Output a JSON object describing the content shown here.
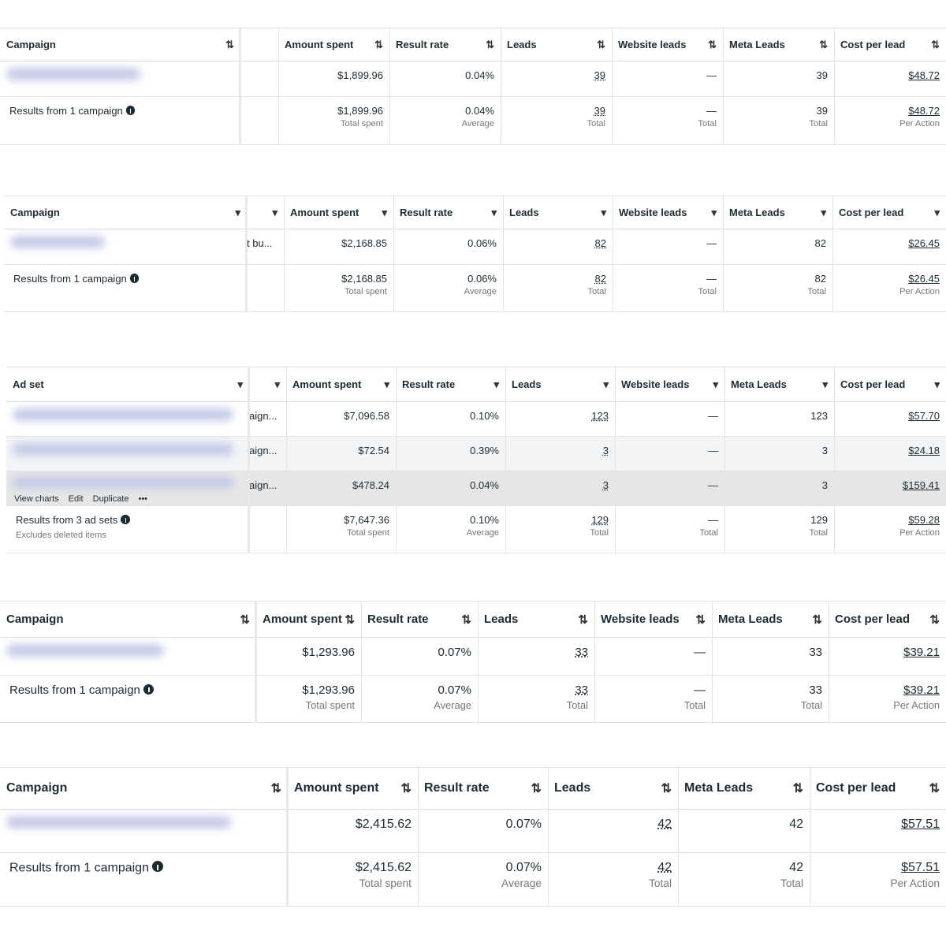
{
  "tables": [
    {
      "headers": [
        "Campaign",
        "Amount spent",
        "Result rate",
        "Leads",
        "Website leads",
        "Meta Leads",
        "Cost per lead"
      ],
      "rows": [
        {
          "extra": "",
          "cells": [
            "$1,899.96",
            "0.04%",
            "39",
            "—",
            "39",
            "$48.72"
          ]
        }
      ],
      "summary": {
        "label": "Results from 1 campaign",
        "cells": [
          "$1,899.96",
          "0.04%",
          "39",
          "—",
          "39",
          "$48.72"
        ],
        "sub": [
          "Total spent",
          "Average",
          "Total",
          "Total",
          "Total",
          "Per Action"
        ]
      }
    },
    {
      "headers": [
        "Campaign",
        "Amount spent",
        "Result rate",
        "Leads",
        "Website leads",
        "Meta Leads",
        "Cost per lead"
      ],
      "rows": [
        {
          "extra": "t bu...",
          "cells": [
            "$2,168.85",
            "0.06%",
            "82",
            "—",
            "82",
            "$26.45"
          ]
        }
      ],
      "summary": {
        "label": "Results from 1 campaign",
        "cells": [
          "$2,168.85",
          "0.06%",
          "82",
          "—",
          "82",
          "$26.45"
        ],
        "sub": [
          "Total spent",
          "Average",
          "Total",
          "Total",
          "Total",
          "Per Action"
        ]
      }
    },
    {
      "headers": [
        "Ad set",
        "Amount spent",
        "Result rate",
        "Leads",
        "Website leads",
        "Meta Leads",
        "Cost per lead"
      ],
      "rows": [
        {
          "extra": "aign...",
          "cells": [
            "$7,096.58",
            "0.10%",
            "123",
            "—",
            "123",
            "$57.70"
          ]
        },
        {
          "extra": "aign...",
          "cells": [
            "$72.54",
            "0.39%",
            "3",
            "—",
            "3",
            "$24.18"
          ]
        },
        {
          "extra": "aign...",
          "cells": [
            "$478.24",
            "0.04%",
            "3",
            "—",
            "3",
            "$159.41"
          ],
          "actions": [
            "View charts",
            "Edit",
            "Duplicate"
          ]
        }
      ],
      "summary": {
        "label": "Results from 3 ad sets",
        "note": "Excludes deleted items",
        "cells": [
          "$7,647.36",
          "0.10%",
          "129",
          "—",
          "129",
          "$59.28"
        ],
        "sub": [
          "Total spent",
          "Average",
          "Total",
          "Total",
          "Total",
          "Per Action"
        ]
      }
    },
    {
      "headers": [
        "Campaign",
        "Amount spent",
        "Result rate",
        "Leads",
        "Website leads",
        "Meta Leads",
        "Cost per lead"
      ],
      "rows": [
        {
          "cells": [
            "$1,293.96",
            "0.07%",
            "33",
            "—",
            "33",
            "$39.21"
          ]
        }
      ],
      "summary": {
        "label": "Results from 1 campaign",
        "cells": [
          "$1,293.96",
          "0.07%",
          "33",
          "—",
          "33",
          "$39.21"
        ],
        "sub": [
          "Total spent",
          "Average",
          "Total",
          "Total",
          "Total",
          "Per Action"
        ]
      }
    },
    {
      "headers": [
        "Campaign",
        "Amount spent",
        "Result rate",
        "Leads",
        "Meta Leads",
        "Cost per lead"
      ],
      "rows": [
        {
          "cells": [
            "$2,415.62",
            "0.07%",
            "42",
            "42",
            "$57.51"
          ]
        }
      ],
      "summary": {
        "label": "Results from 1 campaign",
        "cells": [
          "$2,415.62",
          "0.07%",
          "42",
          "42",
          "$57.51"
        ],
        "sub": [
          "Total spent",
          "Average",
          "Total",
          "Total",
          "Per Action"
        ]
      }
    }
  ]
}
